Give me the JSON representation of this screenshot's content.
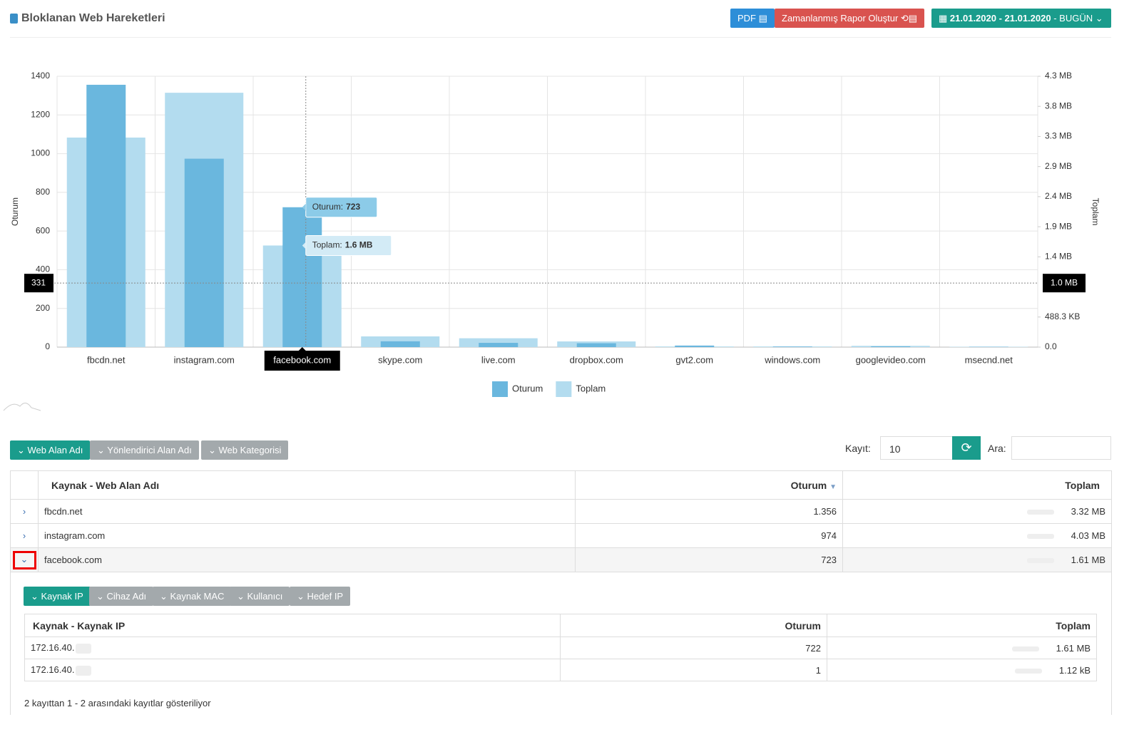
{
  "header": {
    "title": "Bloklanan Web Hareketleri",
    "pdf_button": "PDF",
    "schedule_button": "Zamanlanmış Rapor Oluştur",
    "date_range": "21.01.2020 - 21.01.2020",
    "date_preset": "BUGÜN"
  },
  "chart_data": {
    "type": "bar",
    "categories": [
      "fbcdn.net",
      "instagram.com",
      "facebook.com",
      "skype.com",
      "live.com",
      "dropbox.com",
      "gvt2.com",
      "windows.com",
      "googlevideo.com",
      "msecnd.net"
    ],
    "series": [
      {
        "name": "Toplam",
        "color": "#b3dcef",
        "axis": "y2",
        "values": [
          3.32,
          4.03,
          1.61,
          0.17,
          0.14,
          0.09,
          0.01,
          0.01,
          0.02,
          0.005
        ]
      },
      {
        "name": "Oturum",
        "color": "#6ab7de",
        "values": [
          1356,
          974,
          723,
          30,
          22,
          20,
          8,
          3,
          4,
          2
        ]
      }
    ],
    "ylabel": "Oturum",
    "y2label": "Toplam",
    "ylim": [
      0,
      1400
    ],
    "yticks": [
      0,
      200,
      400,
      600,
      800,
      1000,
      1200,
      1400
    ],
    "y2lim": [
      0,
      4.2915
    ],
    "y2ticks": [
      {
        "value": 0,
        "label": "0.0"
      },
      {
        "value": 0.4768,
        "label": "488.3 KB"
      },
      {
        "value": 1.4305,
        "label": "1.4 MB"
      },
      {
        "value": 1.9073,
        "label": "1.9 MB"
      },
      {
        "value": 2.3842,
        "label": "2.4 MB"
      },
      {
        "value": 2.861,
        "label": "2.9 MB"
      },
      {
        "value": 3.3379,
        "label": "3.3 MB"
      },
      {
        "value": 3.8147,
        "label": "3.8 MB"
      },
      {
        "value": 4.2915,
        "label": "4.3 MB"
      }
    ],
    "grid": true,
    "hover_category": "facebook.com",
    "crosshair": {
      "y": 331,
      "y2_label": "1.0 MB"
    },
    "tooltips": [
      {
        "label": "Oturum:",
        "value": "723"
      },
      {
        "label": "Toplam:",
        "value": "1.6 MB"
      }
    ]
  },
  "filters": {
    "buttons": [
      "Web Alan Adı",
      "Yönlendirici Alan Adı",
      "Web Kategorisi"
    ],
    "records_label": "Kayıt:",
    "records_value": "10",
    "search_label": "Ara:"
  },
  "table": {
    "headers": [
      "Kaynak - Web Alan Adı",
      "Oturum",
      "Toplam"
    ],
    "rows": [
      [
        "fbcdn.net",
        "1.356",
        "3.32 MB"
      ],
      [
        "instagram.com",
        "974",
        "4.03 MB"
      ],
      [
        "facebook.com",
        "723",
        "1.61 MB"
      ]
    ]
  },
  "detail": {
    "buttons": [
      "Kaynak IP",
      "Cihaz Adı",
      "Kaynak MAC",
      "Kullanıcı",
      "Hedef IP"
    ],
    "headers": [
      "Kaynak - Kaynak IP",
      "Oturum",
      "Toplam"
    ],
    "rows": [
      [
        "172.16.40.",
        "722",
        "1.61 MB"
      ],
      [
        "172.16.40.",
        "1",
        "1.12 kB"
      ]
    ],
    "info": "2 kayıttan 1 - 2 arasındaki kayıtlar gösteriliyor"
  }
}
